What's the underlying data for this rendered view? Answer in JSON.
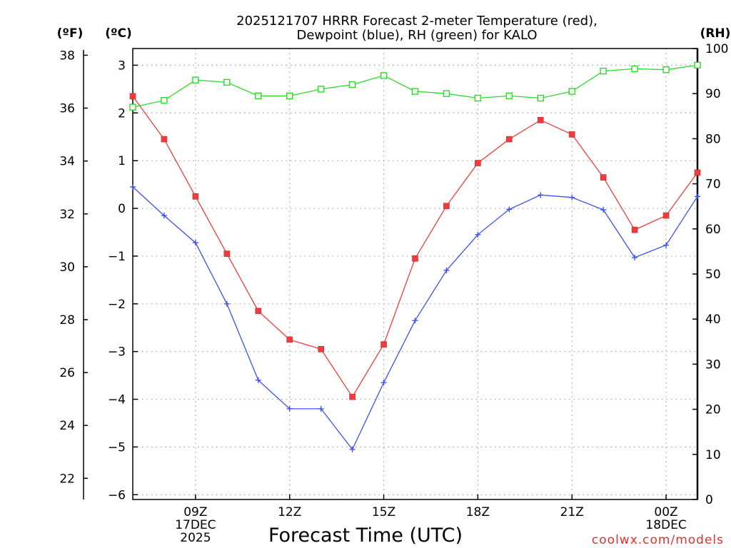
{
  "chart_data": {
    "type": "line",
    "title_lines": [
      "2025121707 HRRR Forecast 2-meter Temperature (red),",
      "Dewpoint (blue), RH (green) for KALO"
    ],
    "xlabel": "Forecast Time (UTC)",
    "credit": "coolwx.com/models",
    "x_range": [
      7,
      25
    ],
    "x_ticks": [
      {
        "x": 9,
        "lines": [
          "09Z",
          "17DEC",
          "2025"
        ]
      },
      {
        "x": 12,
        "lines": [
          "12Z"
        ]
      },
      {
        "x": 15,
        "lines": [
          "15Z"
        ]
      },
      {
        "x": 18,
        "lines": [
          "18Z"
        ]
      },
      {
        "x": 21,
        "lines": [
          "21Z"
        ]
      },
      {
        "x": 24,
        "lines": [
          "00Z",
          "18DEC"
        ]
      }
    ],
    "axes": {
      "fahrenheit": {
        "unit": "(ºF)",
        "range": [
          21.2,
          38.2
        ],
        "ticks": [
          22,
          24,
          26,
          28,
          30,
          32,
          34,
          36,
          38
        ]
      },
      "celsius": {
        "unit": "(ºC)",
        "range": [
          -6.1,
          3.35
        ],
        "ticks": [
          -6,
          -5,
          -4,
          -3,
          -2,
          -1,
          0,
          1,
          2,
          3
        ]
      },
      "rh": {
        "unit": "(RH)",
        "range": [
          0,
          100
        ],
        "ticks": [
          0,
          10,
          20,
          30,
          40,
          50,
          60,
          70,
          80,
          90,
          100
        ]
      }
    },
    "x": [
      7,
      8,
      9,
      10,
      11,
      12,
      13,
      14,
      15,
      16,
      17,
      18,
      19,
      20,
      21,
      22,
      23,
      24,
      25
    ],
    "series": [
      {
        "name": "Temperature (ºC)",
        "axis": "celsius",
        "color": "#f03c3c",
        "marker": "filled-square",
        "values": [
          2.35,
          1.45,
          0.25,
          -0.95,
          -2.15,
          -2.75,
          -2.95,
          -3.95,
          -2.85,
          -1.05,
          0.05,
          0.95,
          1.45,
          1.85,
          1.55,
          0.65,
          -0.45,
          -0.15,
          0.75
        ]
      },
      {
        "name": "Dewpoint (ºC)",
        "axis": "celsius",
        "color": "#3c50f0",
        "marker": "plus",
        "values": [
          0.45,
          -0.15,
          -0.72,
          -2.0,
          -3.6,
          -4.2,
          -4.2,
          -5.05,
          -3.65,
          -2.35,
          -1.3,
          -0.55,
          -0.02,
          0.28,
          0.23,
          -0.03,
          -1.03,
          -0.77,
          0.25
        ]
      },
      {
        "name": "RH (%)",
        "axis": "rh",
        "color": "#28dc28",
        "marker": "open-square",
        "values": [
          87,
          88.5,
          93,
          92.5,
          89.5,
          89.5,
          91,
          92,
          94,
          90.5,
          90,
          89,
          89.5,
          89,
          90.5,
          95,
          95.5,
          95.3,
          96.3
        ]
      }
    ]
  }
}
